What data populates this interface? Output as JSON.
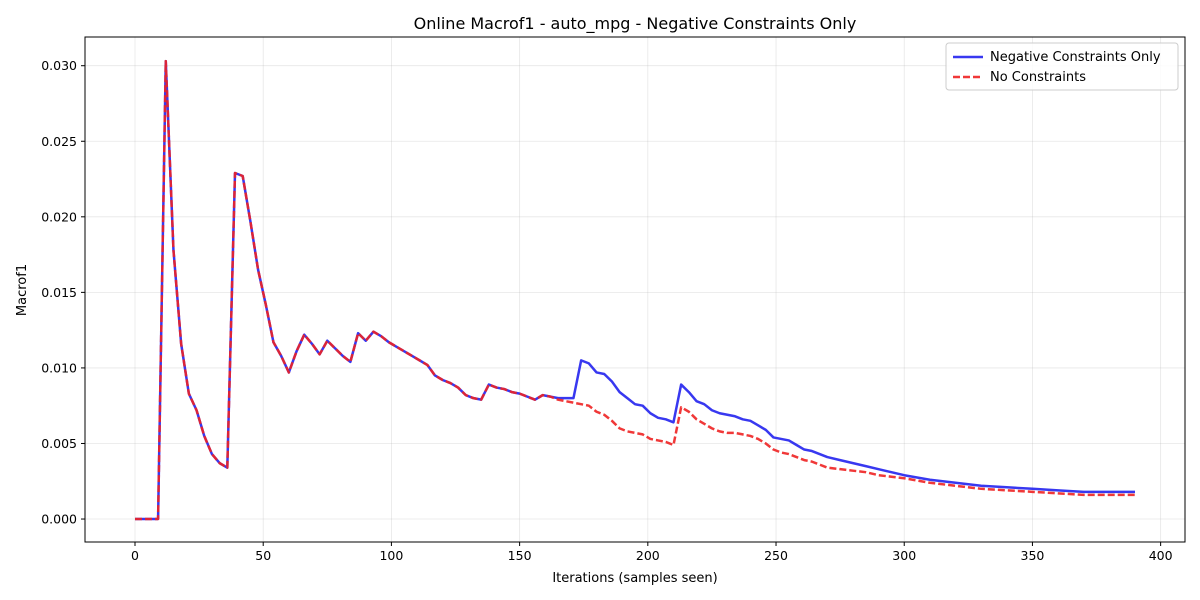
{
  "chart_data": {
    "type": "line",
    "title": "Online Macrof1 - auto_mpg - Negative Constraints Only",
    "xlabel": "Iterations (samples seen)",
    "ylabel": "Macrof1",
    "xlim": [
      -19.5,
      409.5
    ],
    "ylim": [
      -0.00152,
      0.0319
    ],
    "xticks": [
      0,
      50,
      100,
      150,
      200,
      250,
      300,
      350,
      400
    ],
    "xtick_labels": [
      "0",
      "50",
      "100",
      "150",
      "200",
      "250",
      "300",
      "350",
      "400"
    ],
    "yticks": [
      0.0,
      0.005,
      0.01,
      0.015,
      0.02,
      0.025,
      0.03
    ],
    "ytick_labels": [
      "0.000",
      "0.005",
      "0.010",
      "0.015",
      "0.020",
      "0.025",
      "0.030"
    ],
    "grid": true,
    "legend_position": "top-right",
    "series": [
      {
        "name": "Negative Constraints Only",
        "color": "#2222ee",
        "style": "solid",
        "x": [
          0,
          3,
          6,
          9,
          12,
          15,
          18,
          21,
          24,
          27,
          30,
          33,
          36,
          39,
          42,
          45,
          48,
          51,
          54,
          57,
          60,
          63,
          66,
          69,
          72,
          75,
          78,
          81,
          84,
          87,
          90,
          93,
          96,
          99,
          102,
          105,
          108,
          111,
          114,
          117,
          120,
          123,
          126,
          129,
          132,
          135,
          138,
          141,
          144,
          147,
          150,
          153,
          156,
          159,
          162,
          165,
          168,
          171,
          174,
          177,
          180,
          183,
          186,
          189,
          192,
          195,
          198,
          201,
          204,
          207,
          210,
          213,
          216,
          219,
          222,
          225,
          228,
          231,
          234,
          237,
          240,
          243,
          246,
          249,
          252,
          255,
          258,
          261,
          264,
          267,
          270,
          275,
          280,
          285,
          290,
          295,
          300,
          310,
          320,
          330,
          340,
          350,
          360,
          370,
          380,
          390
        ],
        "values": [
          0.0,
          0.0,
          0.0,
          0.0,
          0.0303,
          0.0178,
          0.0116,
          0.0083,
          0.0072,
          0.0055,
          0.0043,
          0.0037,
          0.0034,
          0.0229,
          0.0227,
          0.0197,
          0.0165,
          0.0142,
          0.0117,
          0.0108,
          0.0097,
          0.0111,
          0.0122,
          0.0116,
          0.0109,
          0.0118,
          0.0113,
          0.0108,
          0.0104,
          0.0123,
          0.0118,
          0.0124,
          0.0121,
          0.0117,
          0.0114,
          0.0111,
          0.0108,
          0.0105,
          0.0102,
          0.0095,
          0.0092,
          0.009,
          0.0087,
          0.0082,
          0.008,
          0.0079,
          0.0089,
          0.0087,
          0.0086,
          0.0084,
          0.0083,
          0.0081,
          0.0079,
          0.0082,
          0.0081,
          0.008,
          0.008,
          0.008,
          0.0105,
          0.0103,
          0.0097,
          0.0096,
          0.0091,
          0.0084,
          0.008,
          0.0076,
          0.0075,
          0.007,
          0.0067,
          0.0066,
          0.0064,
          0.0089,
          0.0084,
          0.0078,
          0.0076,
          0.0072,
          0.007,
          0.0069,
          0.0068,
          0.0066,
          0.0065,
          0.0062,
          0.0059,
          0.0054,
          0.0053,
          0.0052,
          0.0049,
          0.0046,
          0.0045,
          0.0043,
          0.0041,
          0.0039,
          0.0037,
          0.0035,
          0.0033,
          0.0031,
          0.0029,
          0.0026,
          0.0024,
          0.0022,
          0.0021,
          0.002,
          0.0019,
          0.0018,
          0.0018,
          0.0018
        ]
      },
      {
        "name": "No Constraints",
        "color": "#ee2222",
        "style": "dashed",
        "x": [
          0,
          3,
          6,
          9,
          12,
          15,
          18,
          21,
          24,
          27,
          30,
          33,
          36,
          39,
          42,
          45,
          48,
          51,
          54,
          57,
          60,
          63,
          66,
          69,
          72,
          75,
          78,
          81,
          84,
          87,
          90,
          93,
          96,
          99,
          102,
          105,
          108,
          111,
          114,
          117,
          120,
          123,
          126,
          129,
          132,
          135,
          138,
          141,
          144,
          147,
          150,
          153,
          156,
          159,
          162,
          165,
          168,
          171,
          174,
          177,
          180,
          183,
          186,
          189,
          192,
          195,
          198,
          201,
          204,
          207,
          210,
          213,
          216,
          219,
          222,
          225,
          228,
          231,
          234,
          237,
          240,
          243,
          246,
          249,
          252,
          255,
          258,
          261,
          264,
          267,
          270,
          275,
          280,
          285,
          290,
          295,
          300,
          310,
          320,
          330,
          340,
          350,
          360,
          370,
          380,
          390
        ],
        "values": [
          0.0,
          0.0,
          0.0,
          0.0,
          0.0303,
          0.0178,
          0.0116,
          0.0083,
          0.0072,
          0.0055,
          0.0043,
          0.0037,
          0.0034,
          0.0229,
          0.0227,
          0.0197,
          0.0165,
          0.0142,
          0.0117,
          0.0108,
          0.0097,
          0.0111,
          0.0122,
          0.0116,
          0.0109,
          0.0118,
          0.0113,
          0.0108,
          0.0104,
          0.0123,
          0.0118,
          0.0124,
          0.0121,
          0.0117,
          0.0114,
          0.0111,
          0.0108,
          0.0105,
          0.0102,
          0.0095,
          0.0092,
          0.009,
          0.0087,
          0.0082,
          0.008,
          0.0079,
          0.0089,
          0.0087,
          0.0086,
          0.0084,
          0.0083,
          0.0081,
          0.0079,
          0.0082,
          0.0081,
          0.0079,
          0.0078,
          0.0077,
          0.0076,
          0.0075,
          0.0071,
          0.0069,
          0.0065,
          0.006,
          0.0058,
          0.0057,
          0.0056,
          0.0053,
          0.0052,
          0.0051,
          0.0049,
          0.0074,
          0.0071,
          0.0066,
          0.0063,
          0.006,
          0.0058,
          0.0057,
          0.0057,
          0.0056,
          0.0055,
          0.0053,
          0.005,
          0.0046,
          0.0044,
          0.0043,
          0.0041,
          0.0039,
          0.0038,
          0.0036,
          0.0034,
          0.0033,
          0.0032,
          0.0031,
          0.0029,
          0.0028,
          0.0027,
          0.0024,
          0.0022,
          0.002,
          0.0019,
          0.0018,
          0.0017,
          0.0016,
          0.0016,
          0.0016
        ]
      }
    ]
  }
}
